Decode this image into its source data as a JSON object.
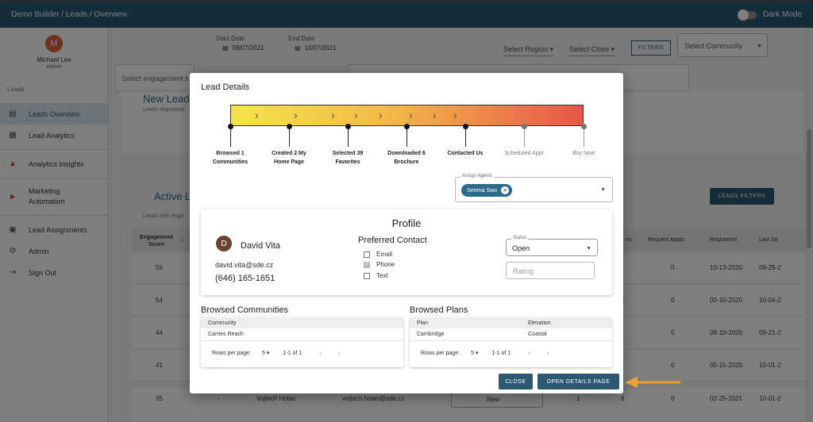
{
  "topbar": {
    "breadcrumb": "Demo Builder  /  Leads / Overview",
    "dark_mode_label": "Dark Mode"
  },
  "user": {
    "initial": "M",
    "name": "Michael Lee",
    "role": "Admin"
  },
  "sidebar": {
    "section": "Leads",
    "items": [
      {
        "label": "Leads Overview",
        "icon": "document-icon"
      },
      {
        "label": "Lead Analytics",
        "icon": "chart-icon"
      },
      {
        "label": "Analytics Insights",
        "icon": "insights-icon"
      },
      {
        "label": "Marketing Automation",
        "icon": "megaphone-icon"
      },
      {
        "label": "Lead Assignments",
        "icon": "assignment-icon"
      },
      {
        "label": "Admin",
        "icon": "gear-icon"
      },
      {
        "label": "Sign Out",
        "icon": "sign-out-icon"
      }
    ]
  },
  "filters": {
    "start_date_label": "Start Date",
    "start_date": "09/07/2021",
    "end_date_label": "End Date",
    "end_date": "10/07/2021",
    "region": "Select Region",
    "cities": "Select Cities",
    "filters_button": "FILTERS",
    "community": "Select Community",
    "engagement_placeholder": "Select engagement s"
  },
  "background": {
    "new_leads_title": "New Lead",
    "new_leads_sub": "Leads registered",
    "active_title": "Active L",
    "active_sub": "Leads with enga",
    "leads_filters_button": "LEADS FILTERS",
    "table_headers": [
      "Engagement Score",
      "ns",
      "Request Appts.",
      "Registered",
      "Last Se"
    ],
    "rows": [
      {
        "score": "56",
        "ns": "",
        "appts": "0",
        "registered": "10-13-2020",
        "last": "09-29-2"
      },
      {
        "score": "54",
        "ns": "5",
        "appts": "0",
        "registered": "02-10-2020",
        "last": "10-04-2"
      },
      {
        "score": "44",
        "ns": "",
        "appts": "0",
        "registered": "09-10-2020",
        "last": "09-21-2"
      },
      {
        "score": "41",
        "ns": "",
        "appts": "0",
        "registered": "05-15-2020",
        "last": "10-01-2"
      },
      {
        "score": "35",
        "ns": "6",
        "appts": "0",
        "registered": "02-25-2021",
        "last": "10-01-2"
      }
    ],
    "last_row": {
      "dash": "-",
      "name": "Vojtech Holan",
      "email": "vojtech.holan@sde.cz",
      "status": "New",
      "col": "1"
    }
  },
  "modal": {
    "title": "Lead Details",
    "steps": [
      {
        "label": "Browsed 1 Communities",
        "done": true
      },
      {
        "label": "Created 2 My Home Page",
        "done": true
      },
      {
        "label": "Selected 39 Favorites",
        "done": true
      },
      {
        "label": "Downloaded 6 Brochure",
        "done": true
      },
      {
        "label": "Contacted Us",
        "done": true
      },
      {
        "label": "Scheduled Appt",
        "done": false
      },
      {
        "label": "Buy Now",
        "done": false
      }
    ],
    "assign_agents_label": "Assign Agents",
    "agent_chip": "Serena Saw",
    "profile": {
      "title": "Profile",
      "initial": "D",
      "name": "David Vita",
      "email": "david.vita@sde.cz",
      "phone": "(646) 165-1651",
      "preferred_contact_title": "Preferred Contact",
      "contact_options": [
        {
          "label": "Email",
          "checked": false
        },
        {
          "label": "Phone",
          "checked": true
        },
        {
          "label": "Text",
          "checked": false
        }
      ],
      "status_label": "Status",
      "status_value": "Open",
      "rating_placeholder": "Rating"
    },
    "browsed_communities": {
      "title": "Browsed Communities",
      "header": "Community",
      "rows": [
        "Carries Reach"
      ],
      "rows_per_page_label": "Rows per page:",
      "rows_per_page": "5",
      "range": "1-1 of 1"
    },
    "browsed_plans": {
      "title": "Browsed Plans",
      "headers": [
        "Plan",
        "Elevation"
      ],
      "rows": [
        [
          "Cambridge",
          "Coastal"
        ]
      ],
      "rows_per_page_label": "Rows per page:",
      "rows_per_page": "5",
      "range": "1-1 of 1"
    },
    "close_button": "CLOSE",
    "open_details_button": "OPEN DETAILS PAGE",
    "arrow_color": "#f0a030"
  }
}
